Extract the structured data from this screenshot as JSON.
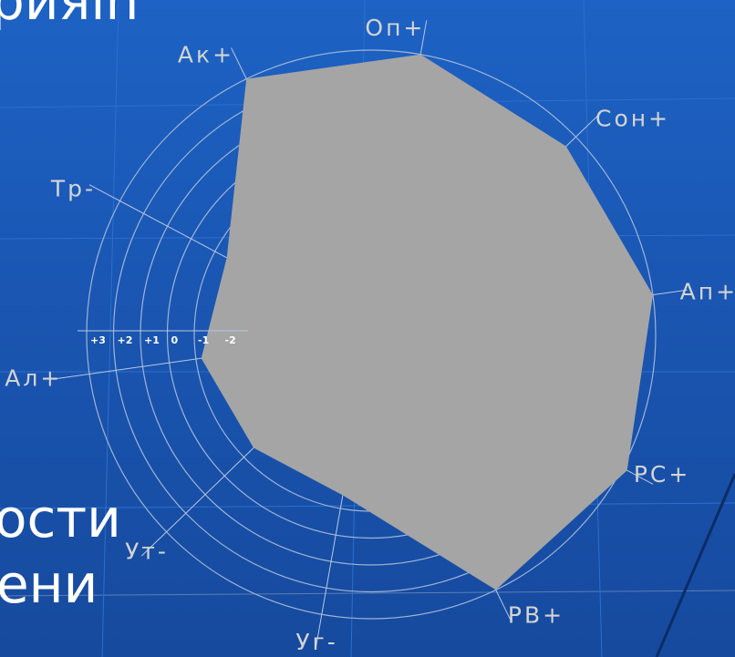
{
  "background_text": {
    "top_fragment": "рияin",
    "line1": "ости",
    "line2": "ени"
  },
  "colors": {
    "background": "#1a56b2",
    "fill": "#a5a5a5",
    "rings": "#9fb4d6",
    "spokes": "#b8c8e2",
    "labels": "#d4d4d4"
  },
  "chart_data": {
    "type": "radar",
    "scale": {
      "min": -3,
      "max": 3
    },
    "ring_levels": [
      -2,
      -1,
      0,
      1,
      2,
      3
    ],
    "ticks": [
      "+3",
      "+2",
      "+1",
      "0",
      "-1",
      "-2"
    ],
    "axes": [
      "Оп+",
      "Сон+",
      "Ап+",
      "РС+",
      "РВ+",
      "Уг-",
      "Ут-",
      "Ал+",
      "Тр-",
      "Ак+"
    ],
    "values": [
      3,
      2.5,
      3,
      3.2,
      3,
      -1.5,
      -1.5,
      -1.2,
      -1.5,
      3
    ],
    "grid": true,
    "legend": "none"
  }
}
